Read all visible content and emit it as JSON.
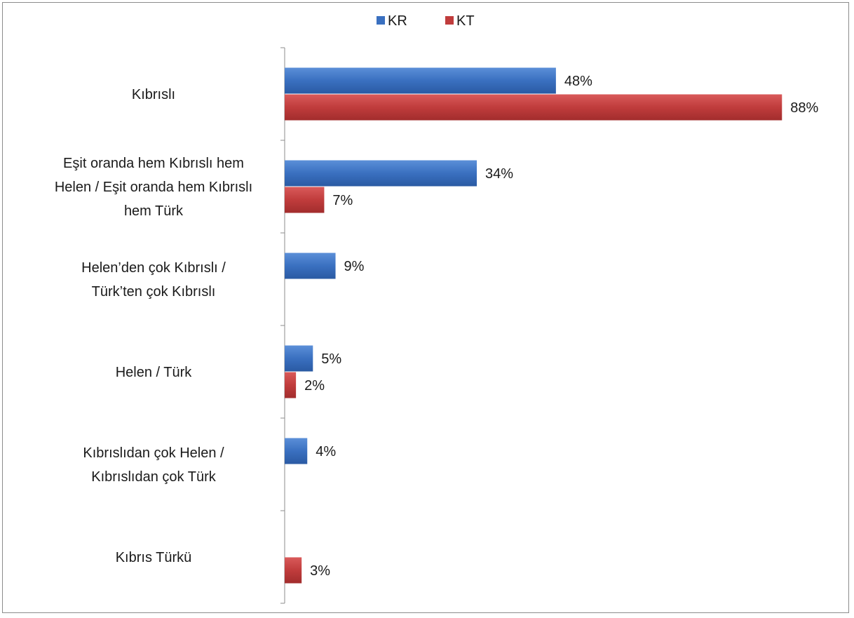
{
  "chart_data": {
    "type": "bar",
    "orientation": "horizontal",
    "title": "",
    "xlabel": "",
    "ylabel": "",
    "xlim": [
      0,
      100
    ],
    "grid": false,
    "legend_position": "top",
    "categories": [
      "Kıbrıslı",
      "Eşit oranda hem Kıbrıslı hem Helen / Eşit oranda hem Kıbrıslı hem Türk",
      "Helen’den çok Kıbrıslı / Türk’ten çok Kıbrıslı",
      "Helen / Türk",
      "Kıbrıslıdan çok Helen / Kıbrıslıdan çok Türk",
      "Kıbrıs Türkü"
    ],
    "category_lines": [
      [
        "Kıbrıslı"
      ],
      [
        "Eşit oranda hem Kıbrıslı hem",
        "Helen / Eşit oranda hem Kıbrıslı",
        "hem Türk"
      ],
      [
        "Helen’den çok Kıbrıslı /",
        "Türk’ten çok Kıbrıslı"
      ],
      [
        "Helen / Türk"
      ],
      [
        "Kıbrıslıdan çok Helen /",
        "Kıbrıslıdan çok Türk"
      ],
      [
        "Kıbrıs Türkü"
      ]
    ],
    "series": [
      {
        "name": "KR",
        "color": "#3a70c0",
        "values": [
          48,
          34,
          9,
          5,
          4,
          null
        ],
        "labels": [
          "48%",
          "34%",
          "9%",
          "5%",
          "4%",
          ""
        ]
      },
      {
        "name": "KT",
        "color": "#c03c3c",
        "values": [
          88,
          7,
          null,
          2,
          null,
          3
        ],
        "labels": [
          "88%",
          "7%",
          "",
          "2%",
          "",
          "3%"
        ]
      }
    ]
  }
}
